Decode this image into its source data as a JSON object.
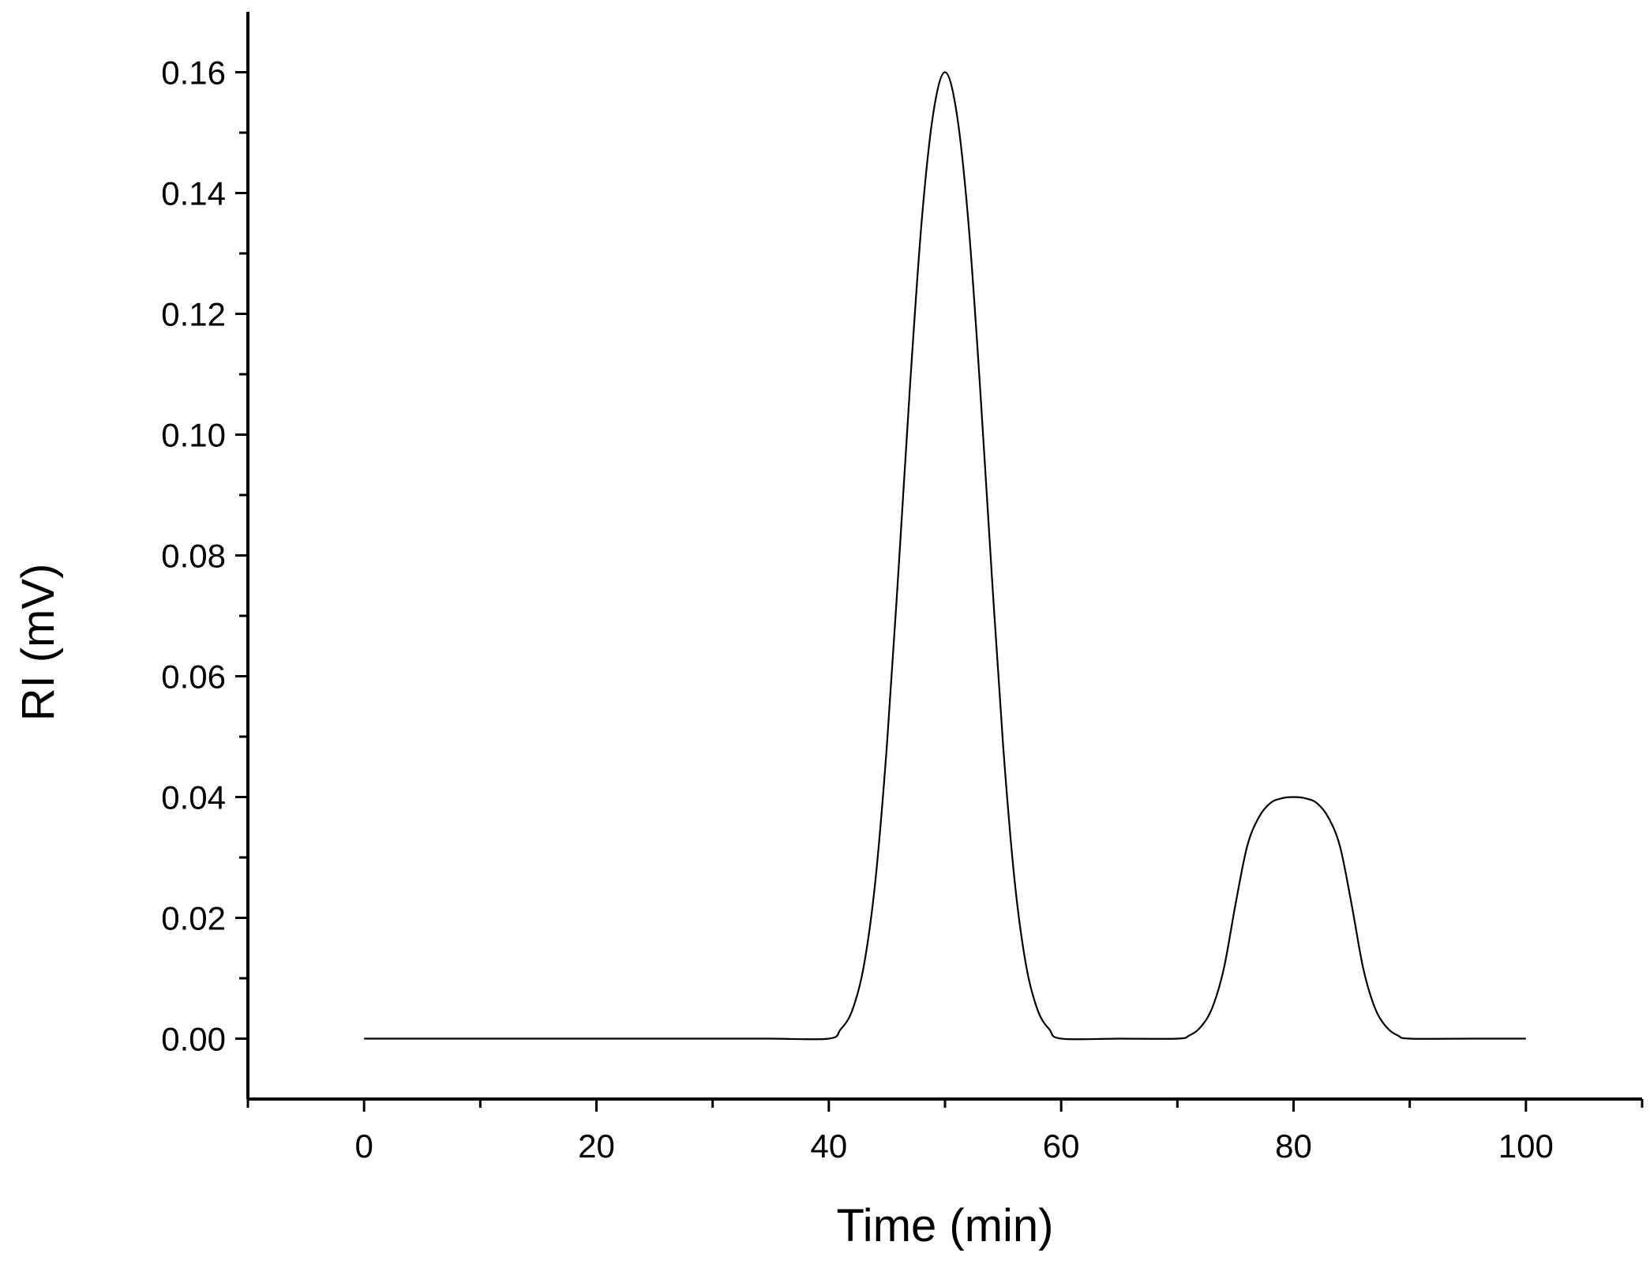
{
  "chart_data": {
    "type": "line",
    "xlabel": "Time (min)",
    "ylabel": "RI (mV)",
    "xlim": [
      -10,
      110
    ],
    "ylim": [
      -0.01,
      0.17
    ],
    "x_ticks": [
      0,
      20,
      40,
      60,
      80,
      100
    ],
    "x_tick_labels": [
      "0",
      "20",
      "40",
      "60",
      "80",
      "100"
    ],
    "y_ticks": [
      0.0,
      0.02,
      0.04,
      0.06,
      0.08,
      0.1,
      0.12,
      0.14,
      0.16
    ],
    "y_tick_labels": [
      "0.00",
      "0.02",
      "0.04",
      "0.06",
      "0.08",
      "0.10",
      "0.12",
      "0.14",
      "0.16"
    ],
    "x_minor_step": 10,
    "y_minor_step": 0.01,
    "grid": false,
    "series": [
      {
        "x": [
          0,
          5,
          10,
          15,
          20,
          25,
          30,
          35,
          40,
          41,
          42,
          43,
          44,
          45,
          46,
          47,
          48,
          49,
          50,
          51,
          52,
          53,
          54,
          55,
          56,
          57,
          58,
          59,
          60,
          65,
          70,
          71,
          72,
          73,
          74,
          75,
          76,
          77,
          78,
          79,
          80,
          81,
          82,
          83,
          84,
          85,
          86,
          87,
          88,
          89,
          90,
          95,
          100
        ],
        "y": [
          0,
          0,
          0,
          0,
          0,
          0,
          0,
          0,
          0,
          0.0015,
          0.0046,
          0.0119,
          0.026,
          0.0486,
          0.0776,
          0.1084,
          0.1355,
          0.1533,
          0.16,
          0.1533,
          0.1355,
          0.1084,
          0.0776,
          0.0486,
          0.026,
          0.0119,
          0.0046,
          0.0015,
          0,
          0,
          0,
          0.0005,
          0.0019,
          0.0051,
          0.0116,
          0.0222,
          0.0318,
          0.0366,
          0.039,
          0.0398,
          0.04,
          0.0398,
          0.039,
          0.0366,
          0.0318,
          0.0222,
          0.0116,
          0.0051,
          0.0019,
          0.0005,
          0,
          0,
          0
        ]
      }
    ]
  }
}
